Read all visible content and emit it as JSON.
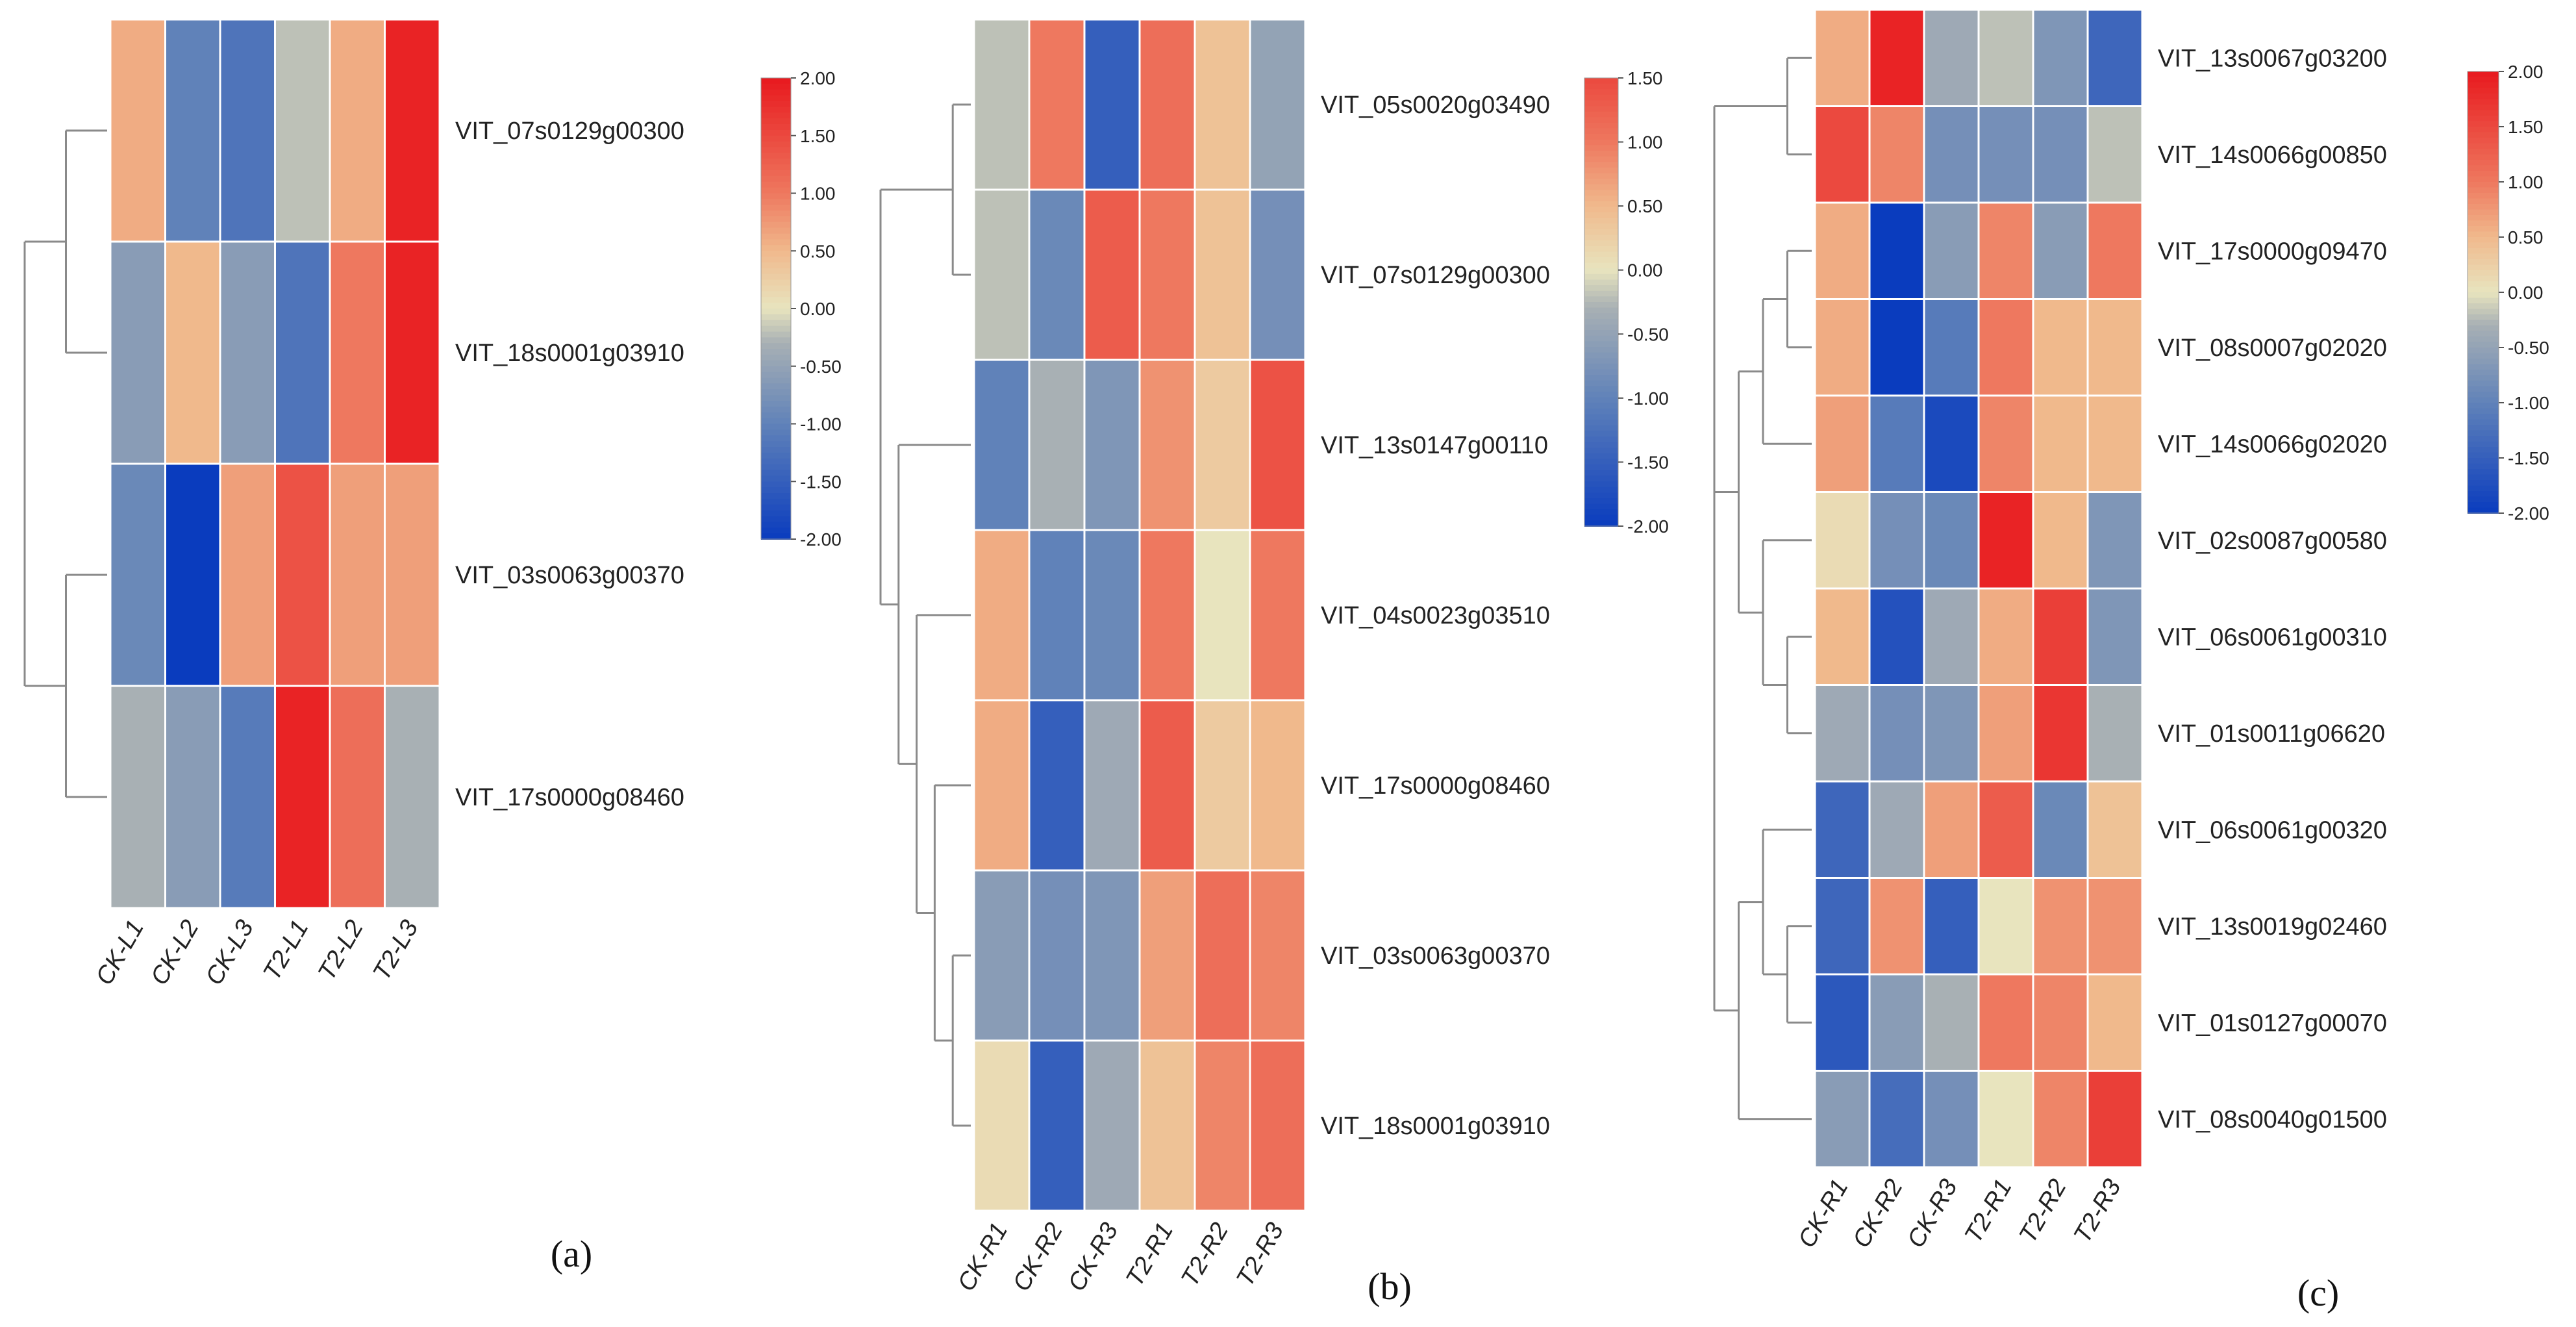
{
  "chart_data": [
    {
      "type": "heatmap",
      "panel_label": "(a)",
      "columns": [
        "CK-L1",
        "CK-L2",
        "CK-L3",
        "T2-L1",
        "T2-L2",
        "T2-L3"
      ],
      "rows": [
        "VIT_07s0129g00300",
        "VIT_18s0001g03910",
        "VIT_03s0063g00370",
        "VIT_17s0000g08460"
      ],
      "values": [
        [
          0.6,
          -1.0,
          -1.2,
          -0.2,
          0.6,
          1.9
        ],
        [
          -0.6,
          0.5,
          -0.6,
          -1.2,
          1.0,
          1.9
        ],
        [
          -0.9,
          -2.0,
          0.7,
          1.4,
          0.7,
          0.7
        ],
        [
          -0.3,
          -0.6,
          -1.1,
          1.9,
          1.1,
          -0.3
        ]
      ],
      "colorbar": {
        "min": -2.0,
        "max": 2.0,
        "ticks": [
          "2.00",
          "1.50",
          "1.00",
          "0.50",
          "0.00",
          "-0.50",
          "-1.00",
          "-1.50",
          "-2.00"
        ]
      },
      "row_dendrogram": "(((1,2),(3,4)))"
    },
    {
      "type": "heatmap",
      "panel_label": "(b)",
      "columns": [
        "CK-R1",
        "CK-R2",
        "CK-R3",
        "T2-R1",
        "T2-R2",
        "T2-R3"
      ],
      "rows": [
        "VIT_05s0020g03490",
        "VIT_07s0129g00300",
        "VIT_13s0147g00110",
        "VIT_04s0023g03510",
        "VIT_17s0000g08460",
        "VIT_03s0063g00370",
        "VIT_18s0001g03910"
      ],
      "values": [
        [
          -0.2,
          1.0,
          -1.5,
          1.1,
          0.4,
          -0.5
        ],
        [
          -0.2,
          -0.9,
          1.3,
          1.0,
          0.4,
          -0.8
        ],
        [
          -1.0,
          -0.3,
          -0.7,
          0.8,
          0.3,
          1.4
        ],
        [
          0.6,
          -1.0,
          -0.9,
          1.0,
          0.0,
          1.0
        ],
        [
          0.6,
          -1.5,
          -0.4,
          1.3,
          0.3,
          0.5
        ],
        [
          -0.6,
          -0.8,
          -0.7,
          0.7,
          1.1,
          0.9
        ],
        [
          0.1,
          -1.5,
          -0.4,
          0.4,
          0.9,
          1.1
        ]
      ],
      "colorbar": {
        "min": -2.0,
        "max": 1.5,
        "ticks": [
          "1.50",
          "1.00",
          "0.50",
          "0.00",
          "-0.50",
          "-1.00",
          "-1.50",
          "-2.00"
        ]
      },
      "row_dendrogram": "((1,2),(3,(4,(5,(6,7)))))"
    },
    {
      "type": "heatmap",
      "panel_label": "(c)",
      "columns": [
        "CK-R1",
        "CK-R2",
        "CK-R3",
        "T2-R1",
        "T2-R2",
        "T2-R3"
      ],
      "rows": [
        "VIT_13s0067g03200",
        "VIT_14s0066g00850",
        "VIT_17s0000g09470",
        "VIT_08s0007g02020",
        "VIT_14s0066g02020",
        "VIT_02s0087g00580",
        "VIT_06s0061g00310",
        "VIT_01s0011g06620",
        "VIT_06s0061g00320",
        "VIT_13s0019g02460",
        "VIT_01s0127g00070",
        "VIT_08s0040g01500"
      ],
      "values": [
        [
          0.6,
          1.9,
          -0.4,
          -0.2,
          -0.7,
          -1.4
        ],
        [
          1.5,
          0.9,
          -0.8,
          -0.8,
          -0.8,
          -0.2
        ],
        [
          0.6,
          -2.0,
          -0.6,
          0.9,
          -0.6,
          1.0
        ],
        [
          0.6,
          -2.0,
          -1.1,
          1.0,
          0.5,
          0.5
        ],
        [
          0.7,
          -1.1,
          -1.8,
          0.9,
          0.5,
          0.5
        ],
        [
          0.1,
          -0.8,
          -0.9,
          1.9,
          0.5,
          -0.7
        ],
        [
          0.5,
          -1.7,
          -0.4,
          0.6,
          1.6,
          -0.7
        ],
        [
          -0.4,
          -0.8,
          -0.7,
          0.7,
          1.7,
          -0.3
        ],
        [
          -1.4,
          -0.4,
          0.7,
          1.3,
          -0.9,
          0.4
        ],
        [
          -1.4,
          0.8,
          -1.5,
          0.0,
          0.8,
          0.8
        ],
        [
          -1.6,
          -0.6,
          -0.3,
          1.0,
          0.9,
          0.5
        ],
        [
          -0.6,
          -1.3,
          -0.8,
          0.0,
          0.9,
          1.6
        ]
      ],
      "colorbar": {
        "min": -2.0,
        "max": 2.0,
        "ticks": [
          "2.00",
          "1.50",
          "1.00",
          "0.50",
          "0.00",
          "-0.50",
          "-1.00",
          "-1.50",
          "-2.00"
        ]
      },
      "row_dendrogram": "((1,2),(((3,4),5),(6,(7,8))),((9,(10,11)),12))"
    }
  ]
}
